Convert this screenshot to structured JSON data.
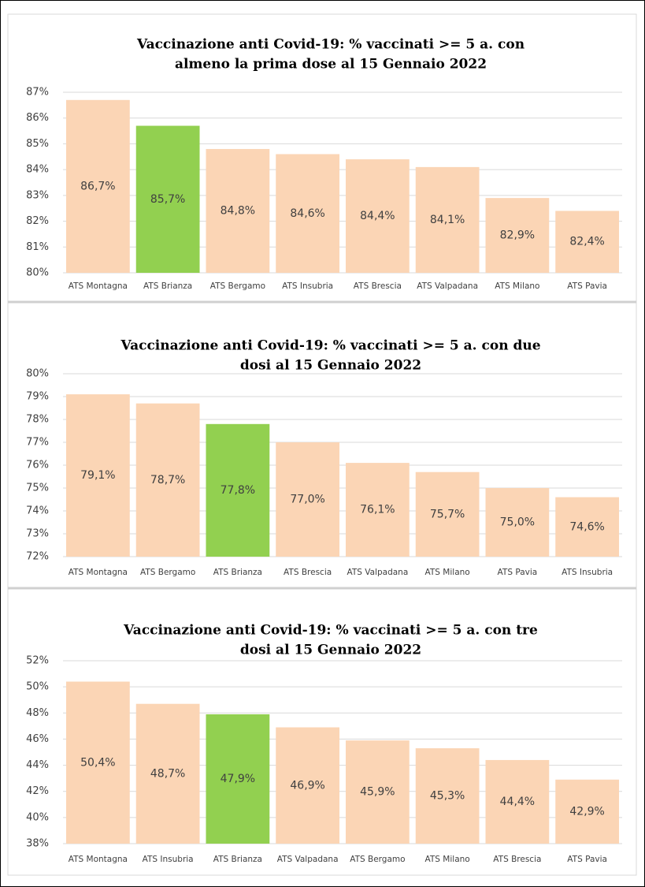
{
  "chart_data": [
    {
      "type": "bar",
      "title": [
        "Vaccinazione anti Covid-19: % vaccinati >= 5 a. con",
        "almeno la prima dose al 15 Gennaio 2022"
      ],
      "categories": [
        "ATS Montagna",
        "ATS Brianza",
        "ATS Bergamo",
        "ATS Insubria",
        "ATS Brescia",
        "ATS Valpadana",
        "ATS Milano",
        "ATS Pavia"
      ],
      "values": [
        86.7,
        85.7,
        84.8,
        84.6,
        84.4,
        84.1,
        82.9,
        82.4
      ],
      "value_labels": [
        "86,7%",
        "85,7%",
        "84,8%",
        "84,6%",
        "84,4%",
        "84,1%",
        "82,9%",
        "82,4%"
      ],
      "colors": [
        "#fbd5b5",
        "#92d050",
        "#fbd5b5",
        "#fbd5b5",
        "#fbd5b5",
        "#fbd5b5",
        "#fbd5b5",
        "#fbd5b5"
      ],
      "ylim": [
        80,
        87
      ],
      "yticks": [
        {
          "value": 80,
          "label": "80%"
        },
        {
          "value": 81,
          "label": "81%"
        },
        {
          "value": 82,
          "label": "82%"
        },
        {
          "value": 83,
          "label": "83%"
        },
        {
          "value": 84,
          "label": "84%"
        },
        {
          "value": 85,
          "label": "85%"
        },
        {
          "value": 86,
          "label": "86%"
        },
        {
          "value": 87,
          "label": "87%"
        }
      ],
      "grid": true
    },
    {
      "type": "bar",
      "title": [
        "Vaccinazione anti Covid-19: % vaccinati >= 5 a. con due",
        "dosi al 15 Gennaio 2022"
      ],
      "categories": [
        "ATS Montagna",
        "ATS Bergamo",
        "ATS Brianza",
        "ATS Brescia",
        "ATS Valpadana",
        "ATS Milano",
        "ATS Pavia",
        "ATS Insubria"
      ],
      "values": [
        79.1,
        78.7,
        77.8,
        77.0,
        76.1,
        75.7,
        75.0,
        74.6
      ],
      "value_labels": [
        "79,1%",
        "78,7%",
        "77,8%",
        "77,0%",
        "76,1%",
        "75,7%",
        "75,0%",
        "74,6%"
      ],
      "colors": [
        "#fbd5b5",
        "#fbd5b5",
        "#92d050",
        "#fbd5b5",
        "#fbd5b5",
        "#fbd5b5",
        "#fbd5b5",
        "#fbd5b5"
      ],
      "ylim": [
        72,
        80
      ],
      "yticks": [
        {
          "value": 72,
          "label": "72%"
        },
        {
          "value": 73,
          "label": "73%"
        },
        {
          "value": 74,
          "label": "74%"
        },
        {
          "value": 75,
          "label": "75%"
        },
        {
          "value": 76,
          "label": "76%"
        },
        {
          "value": 77,
          "label": "77%"
        },
        {
          "value": 78,
          "label": "78%"
        },
        {
          "value": 79,
          "label": "79%"
        },
        {
          "value": 80,
          "label": "80%"
        }
      ],
      "grid": true
    },
    {
      "type": "bar",
      "title": [
        "Vaccinazione anti Covid-19: % vaccinati >= 5 a. con tre",
        "dosi al 15 Gennaio 2022"
      ],
      "categories": [
        "ATS Montagna",
        "ATS Insubria",
        "ATS Brianza",
        "ATS Valpadana",
        "ATS Bergamo",
        "ATS Milano",
        "ATS Brescia",
        "ATS Pavia"
      ],
      "values": [
        50.4,
        48.7,
        47.9,
        46.9,
        45.9,
        45.3,
        44.4,
        42.9
      ],
      "value_labels": [
        "50,4%",
        "48,7%",
        "47,9%",
        "46,9%",
        "45,9%",
        "45,3%",
        "44,4%",
        "42,9%"
      ],
      "colors": [
        "#fbd5b5",
        "#fbd5b5",
        "#92d050",
        "#fbd5b5",
        "#fbd5b5",
        "#fbd5b5",
        "#fbd5b5",
        "#fbd5b5"
      ],
      "ylim": [
        38,
        52
      ],
      "yticks": [
        {
          "value": 38,
          "label": "38%"
        },
        {
          "value": 40,
          "label": "40%"
        },
        {
          "value": 42,
          "label": "42%"
        },
        {
          "value": 44,
          "label": "44%"
        },
        {
          "value": 46,
          "label": "46%"
        },
        {
          "value": 48,
          "label": "48%"
        },
        {
          "value": 50,
          "label": "50%"
        },
        {
          "value": 52,
          "label": "52%"
        }
      ],
      "grid": true
    }
  ]
}
